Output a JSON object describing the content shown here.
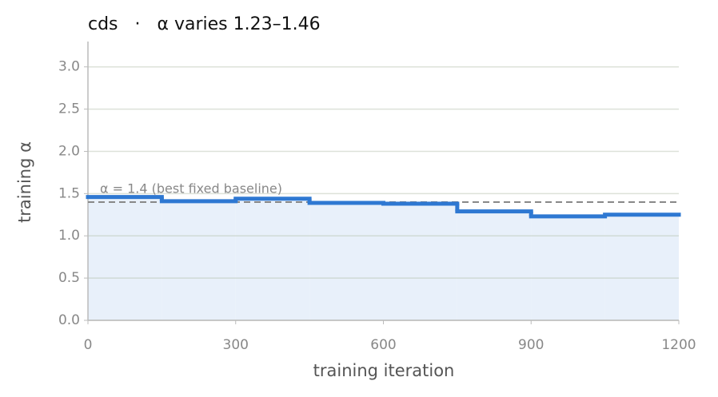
{
  "chart_data": {
    "type": "step",
    "title": "cds   ·   α varies 1.23–1.46",
    "x_label": "training iteration",
    "y_label": "training α",
    "x": [
      0,
      150,
      300,
      450,
      600,
      750,
      900,
      1050
    ],
    "values": [
      1.46,
      1.41,
      1.44,
      1.39,
      1.38,
      1.29,
      1.23,
      1.25
    ],
    "color": "#2e78d2",
    "fill_color": "#e8f0fa",
    "xlim": [
      0,
      1200
    ],
    "ylim": [
      0,
      3.3
    ],
    "xticks": [
      0,
      300,
      600,
      900,
      1200
    ],
    "yticks": [
      {
        "value": 0,
        "label": "0.0"
      },
      {
        "value": 0.5,
        "label": "0.5"
      },
      {
        "value": 1,
        "label": "1.0"
      },
      {
        "value": 1.5,
        "label": "1.5"
      },
      {
        "value": 2,
        "label": "2.0"
      },
      {
        "value": 2.5,
        "label": "2.5"
      },
      {
        "value": 3,
        "label": "3.0"
      }
    ],
    "grid": true,
    "reference_line": {
      "value": 1.4,
      "label": "α = 1.4 (best fixed baseline)",
      "color": "#888888"
    }
  }
}
